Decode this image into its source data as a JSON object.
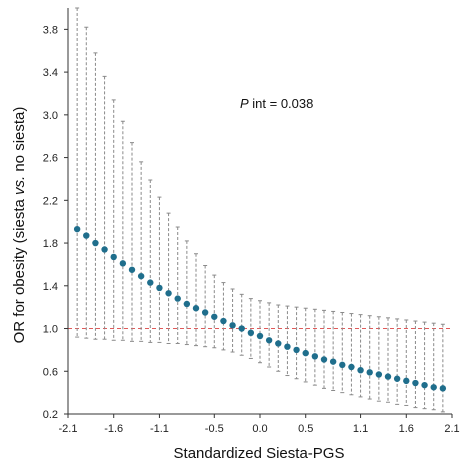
{
  "chart_data": {
    "type": "scatter",
    "xlabel": "Standardized Siesta-PGS",
    "ylabel": {
      "before": "OR for obesity (siesta ",
      "italic": "vs.",
      "after": " no siesta)"
    },
    "annotation": {
      "italic": "P",
      "rest": " int = 0.038"
    },
    "xlim": [
      -2.1,
      2.1
    ],
    "ylim": [
      0.2,
      4.0
    ],
    "xticks": [
      "-2.1",
      "-1.6",
      "-1.1",
      "-0.5",
      "0.0",
      "0.5",
      "1.1",
      "1.6",
      "2.1"
    ],
    "yticks": [
      "0.2",
      "0.6",
      "1.0",
      "1.4",
      "1.8",
      "2.2",
      "2.6",
      "3.0",
      "3.4",
      "3.8"
    ],
    "reference_line": {
      "y": 1.0,
      "style": "dashed",
      "color": "#e05a5a"
    },
    "colors": {
      "point": "#1f6e8c",
      "errorbar": "#8a8a8a",
      "axis": "#333333"
    },
    "grid": false,
    "series": [
      {
        "x": [
          -2.0,
          -1.9,
          -1.8,
          -1.7,
          -1.6,
          -1.5,
          -1.4,
          -1.3,
          -1.2,
          -1.1,
          -1.0,
          -0.9,
          -0.8,
          -0.7,
          -0.6,
          -0.5,
          -0.4,
          -0.3,
          -0.2,
          -0.1,
          0.0,
          0.1,
          0.2,
          0.3,
          0.4,
          0.5,
          0.6,
          0.7,
          0.8,
          0.9,
          1.0,
          1.1,
          1.2,
          1.3,
          1.4,
          1.5,
          1.6,
          1.7,
          1.8,
          1.9,
          2.0
        ],
        "y": [
          1.93,
          1.87,
          1.8,
          1.74,
          1.67,
          1.61,
          1.55,
          1.49,
          1.43,
          1.38,
          1.33,
          1.28,
          1.23,
          1.19,
          1.15,
          1.11,
          1.07,
          1.03,
          1.0,
          0.96,
          0.93,
          0.89,
          0.86,
          0.83,
          0.8,
          0.77,
          0.74,
          0.71,
          0.69,
          0.66,
          0.64,
          0.61,
          0.59,
          0.57,
          0.55,
          0.53,
          0.51,
          0.49,
          0.47,
          0.45,
          0.44
        ],
        "lower": [
          0.92,
          0.91,
          0.9,
          0.9,
          0.89,
          0.89,
          0.88,
          0.88,
          0.87,
          0.87,
          0.86,
          0.86,
          0.85,
          0.84,
          0.83,
          0.82,
          0.8,
          0.78,
          0.75,
          0.72,
          0.68,
          0.64,
          0.6,
          0.56,
          0.53,
          0.5,
          0.47,
          0.44,
          0.42,
          0.4,
          0.38,
          0.36,
          0.34,
          0.32,
          0.31,
          0.29,
          0.28,
          0.26,
          0.25,
          0.24,
          0.22
        ],
        "upper": [
          4.05,
          3.82,
          3.58,
          3.36,
          3.14,
          2.94,
          2.74,
          2.56,
          2.39,
          2.23,
          2.08,
          1.95,
          1.82,
          1.7,
          1.59,
          1.5,
          1.43,
          1.37,
          1.32,
          1.28,
          1.26,
          1.24,
          1.22,
          1.21,
          1.2,
          1.19,
          1.18,
          1.17,
          1.16,
          1.15,
          1.14,
          1.13,
          1.12,
          1.11,
          1.1,
          1.09,
          1.08,
          1.07,
          1.06,
          1.05,
          1.04
        ]
      }
    ]
  }
}
